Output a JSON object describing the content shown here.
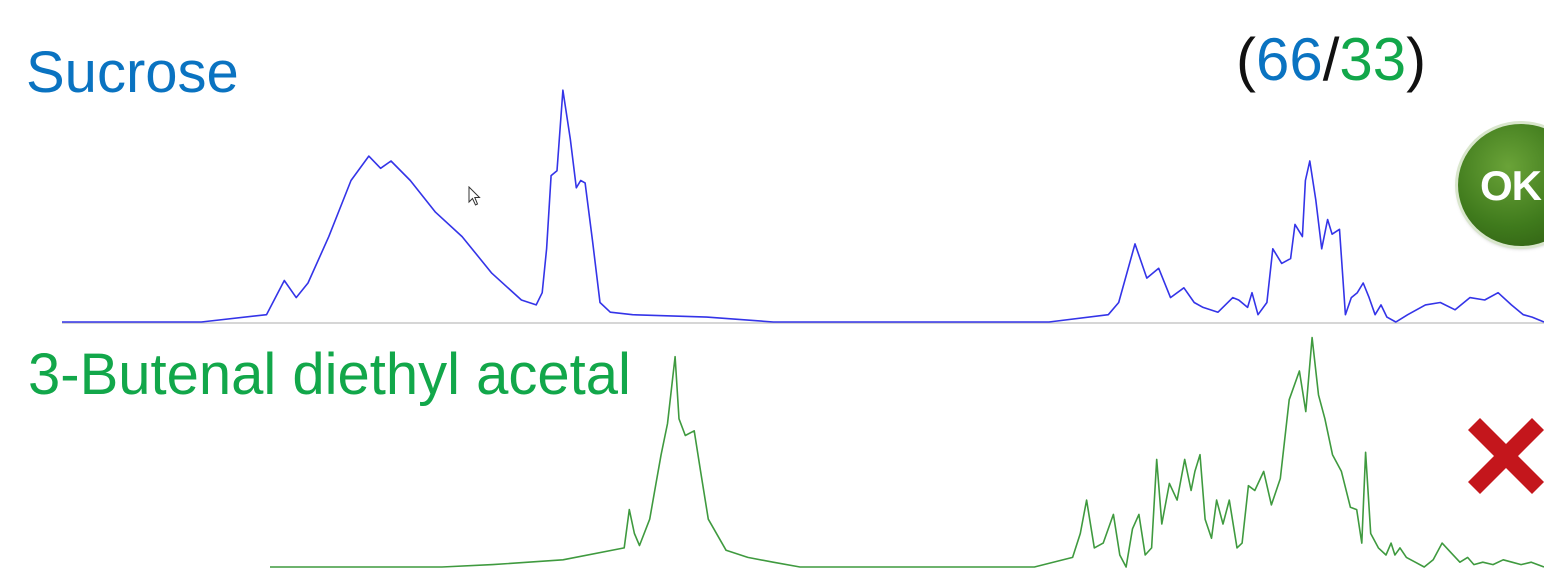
{
  "colors": {
    "top_label": "#0a73c1",
    "bottom_label": "#12a74a",
    "top_trace": "#3434e8",
    "bottom_trace": "#3f9a3f",
    "baseline": "#c9c9c9",
    "reject": "#c4161c"
  },
  "labels": {
    "top": "Sucrose",
    "bottom": "3-Butenal diethyl acetal"
  },
  "ratio": {
    "open": "(",
    "first": "66",
    "sep": "/",
    "second": "33",
    "close": ")"
  },
  "status": {
    "top_badge": "OK",
    "top_icon": "ok-badge",
    "bottom_icon": "x-mark"
  },
  "chart_data": [
    {
      "type": "line",
      "title": "",
      "xlabel": "",
      "ylabel": "",
      "xlim": [
        0,
        100
      ],
      "ylim": [
        0,
        100
      ],
      "grid": false,
      "series": [
        {
          "name": "Sucrose",
          "x": [
            0,
            9.4,
            13.8,
            15.0,
            15.8,
            16.6,
            18.0,
            19.5,
            20.7,
            21.5,
            22.2,
            23.5,
            25.2,
            27.0,
            29.0,
            31.0,
            32.0,
            32.4,
            32.7,
            33.0,
            33.4,
            33.8,
            34.3,
            34.7,
            35.0,
            35.3,
            35.8,
            36.3,
            37.0,
            38.5,
            43.5,
            48.0,
            66.6,
            70.6,
            71.3,
            72.4,
            73.2,
            74.0,
            74.8,
            75.7,
            76.4,
            77.0,
            78.0,
            79.0,
            79.4,
            80.0,
            80.3,
            80.7,
            81.3,
            81.7,
            82.3,
            82.9,
            83.2,
            83.7,
            83.9,
            84.2,
            84.6,
            85.0,
            85.4,
            85.7,
            86.2,
            86.6,
            87.0,
            87.4,
            87.8,
            88.2,
            88.6,
            89.0,
            89.4,
            90.0,
            90.8,
            92.0,
            93.0,
            94.0,
            95.0,
            96.0,
            96.9,
            97.8,
            98.6,
            99.2,
            100
          ],
          "y": [
            0,
            0,
            3,
            17,
            10,
            16,
            35,
            58,
            68,
            63,
            66,
            58,
            45,
            35,
            20,
            9,
            7,
            12,
            30,
            60,
            62,
            95,
            75,
            55,
            58,
            57,
            33,
            8,
            4,
            3,
            2,
            0,
            0,
            3,
            8,
            32,
            18,
            22,
            10,
            14,
            8,
            6,
            4,
            10,
            9,
            6,
            12,
            3,
            8,
            30,
            24,
            26,
            40,
            35,
            58,
            66,
            50,
            30,
            42,
            36,
            38,
            3,
            10,
            12,
            16,
            10,
            3,
            7,
            2,
            0,
            3,
            7,
            8,
            5,
            10,
            9,
            12,
            7,
            3,
            2,
            0
          ]
        }
      ]
    },
    {
      "type": "line",
      "title": "",
      "xlabel": "",
      "ylabel": "",
      "xlim": [
        0,
        100
      ],
      "ylim": [
        0,
        100
      ],
      "grid": false,
      "series": [
        {
          "name": "3-Butenal diethyl acetal",
          "x": [
            0,
            13.5,
            17.5,
            23.0,
            27.8,
            28.2,
            28.6,
            29.0,
            29.8,
            30.3,
            30.7,
            31.2,
            31.8,
            32.1,
            32.6,
            33.3,
            33.8,
            34.4,
            35.8,
            37.5,
            39.5,
            41.6,
            60.0,
            63.0,
            63.6,
            64.1,
            64.7,
            65.4,
            66.2,
            66.7,
            67.2,
            67.7,
            68.2,
            68.7,
            69.2,
            69.6,
            70.0,
            70.6,
            71.2,
            71.8,
            72.3,
            72.6,
            73.0,
            73.4,
            73.9,
            74.3,
            74.8,
            75.3,
            75.9,
            76.3,
            76.8,
            77.3,
            78.0,
            78.6,
            79.3,
            80.0,
            80.8,
            81.3,
            81.8,
            82.3,
            82.8,
            83.4,
            84.1,
            84.8,
            85.3,
            85.7,
            86.0,
            86.4,
            87.0,
            87.6,
            88.0,
            88.3,
            88.7,
            89.2,
            89.9,
            90.6,
            91.3,
            92.0,
            92.7,
            93.4,
            94.0,
            94.5,
            95.2,
            96.0,
            96.8,
            97.5,
            98.2,
            99.0,
            100
          ],
          "y": [
            0,
            0,
            1,
            3,
            8,
            24,
            14,
            9,
            20,
            35,
            47,
            60,
            88,
            62,
            55,
            57,
            40,
            20,
            7,
            4,
            2,
            0,
            0,
            4,
            14,
            28,
            8,
            10,
            22,
            5,
            0,
            16,
            22,
            5,
            8,
            45,
            18,
            35,
            28,
            45,
            32,
            40,
            47,
            20,
            12,
            28,
            18,
            28,
            8,
            10,
            34,
            32,
            40,
            26,
            37,
            70,
            82,
            65,
            96,
            72,
            62,
            47,
            40,
            25,
            24,
            10,
            48,
            14,
            8,
            5,
            10,
            5,
            8,
            4,
            2,
            0,
            3,
            10,
            6,
            2,
            4,
            1,
            2,
            1,
            3,
            2,
            1,
            2,
            0
          ]
        }
      ]
    }
  ]
}
